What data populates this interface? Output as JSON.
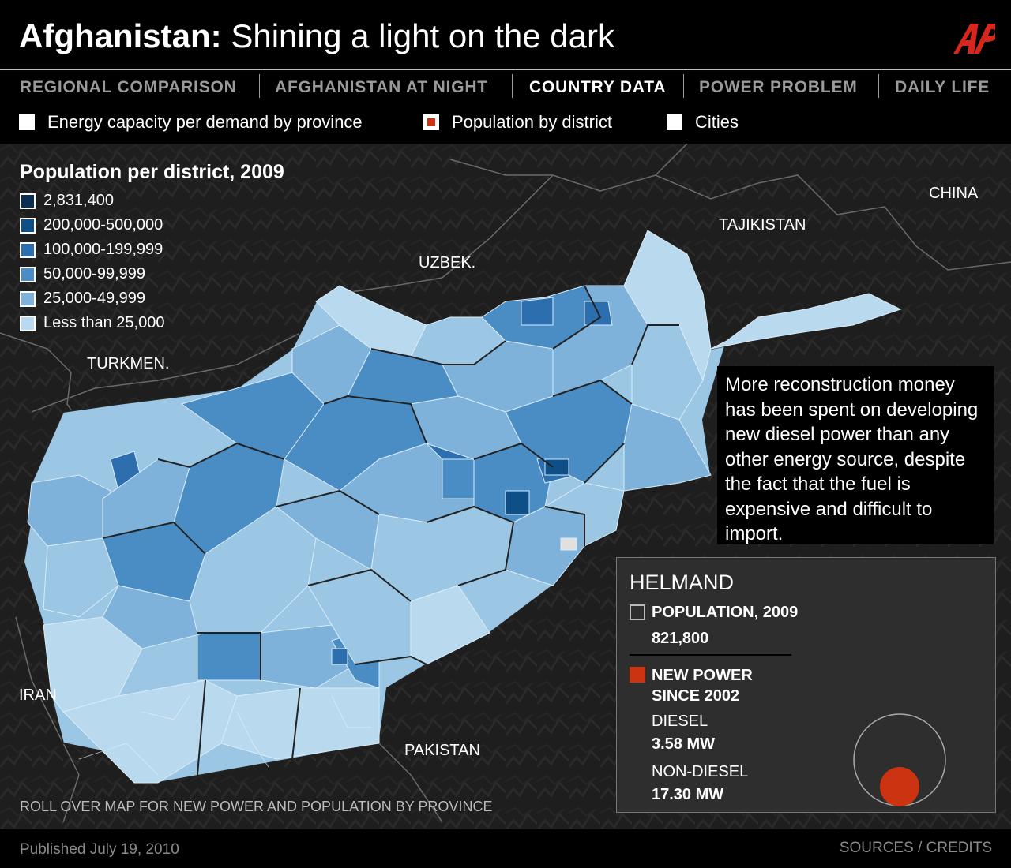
{
  "header": {
    "title_bold": "Afghanistan:",
    "title_rest": "Shining a light on the dark",
    "logo": "AP"
  },
  "tabs": [
    {
      "label": "REGIONAL COMPARISON",
      "active": false
    },
    {
      "label": "AFGHANISTAN AT NIGHT",
      "active": false
    },
    {
      "label": "COUNTRY DATA",
      "active": true
    },
    {
      "label": "POWER PROBLEM",
      "active": false
    },
    {
      "label": "DAILY LIFE",
      "active": false
    }
  ],
  "toggles": [
    {
      "label": "Energy capacity per demand by province",
      "checked": false
    },
    {
      "label": "Population by district",
      "checked": true
    },
    {
      "label": "Cities",
      "checked": false
    }
  ],
  "legend": {
    "title": "Population per district, 2009",
    "items": [
      {
        "label": "2,831,400",
        "color": "#0b2f52"
      },
      {
        "label": "200,000-500,000",
        "color": "#0f4f88"
      },
      {
        "label": "100,000-199,999",
        "color": "#2d6fae"
      },
      {
        "label": "50,000-99,999",
        "color": "#4a8cc4"
      },
      {
        "label": "25,000-49,999",
        "color": "#7fb2da"
      },
      {
        "label": "Less than 25,000",
        "color": "#b9d9ee"
      }
    ]
  },
  "countries": {
    "china": "CHINA",
    "tajikistan": "TAJIKISTAN",
    "uzbek": "UZBEK.",
    "turkmen": "TURKMEN.",
    "iran": "IRAN",
    "pakistan": "PAKISTAN"
  },
  "note": "More reconstruction money has been spent on developing new diesel power than any other energy source, despite the fact that the fuel is expensive and difficult to import.",
  "info": {
    "region": "HELMAND",
    "population_label": "POPULATION, 2009",
    "population_value": "821,800",
    "new_power_label": "NEW POWER SINCE 2002",
    "diesel_label": "DIESEL",
    "diesel_value": "3.58 MW",
    "nondiesel_label": "NON-DIESEL",
    "nondiesel_value": "17.30 MW",
    "new_power_color": "#cc3311"
  },
  "rollover": "ROLL OVER MAP FOR NEW POWER AND POPULATION BY PROVINCE",
  "footer": {
    "published": "Published July 19, 2010",
    "credits": "SOURCES / CREDITS"
  }
}
